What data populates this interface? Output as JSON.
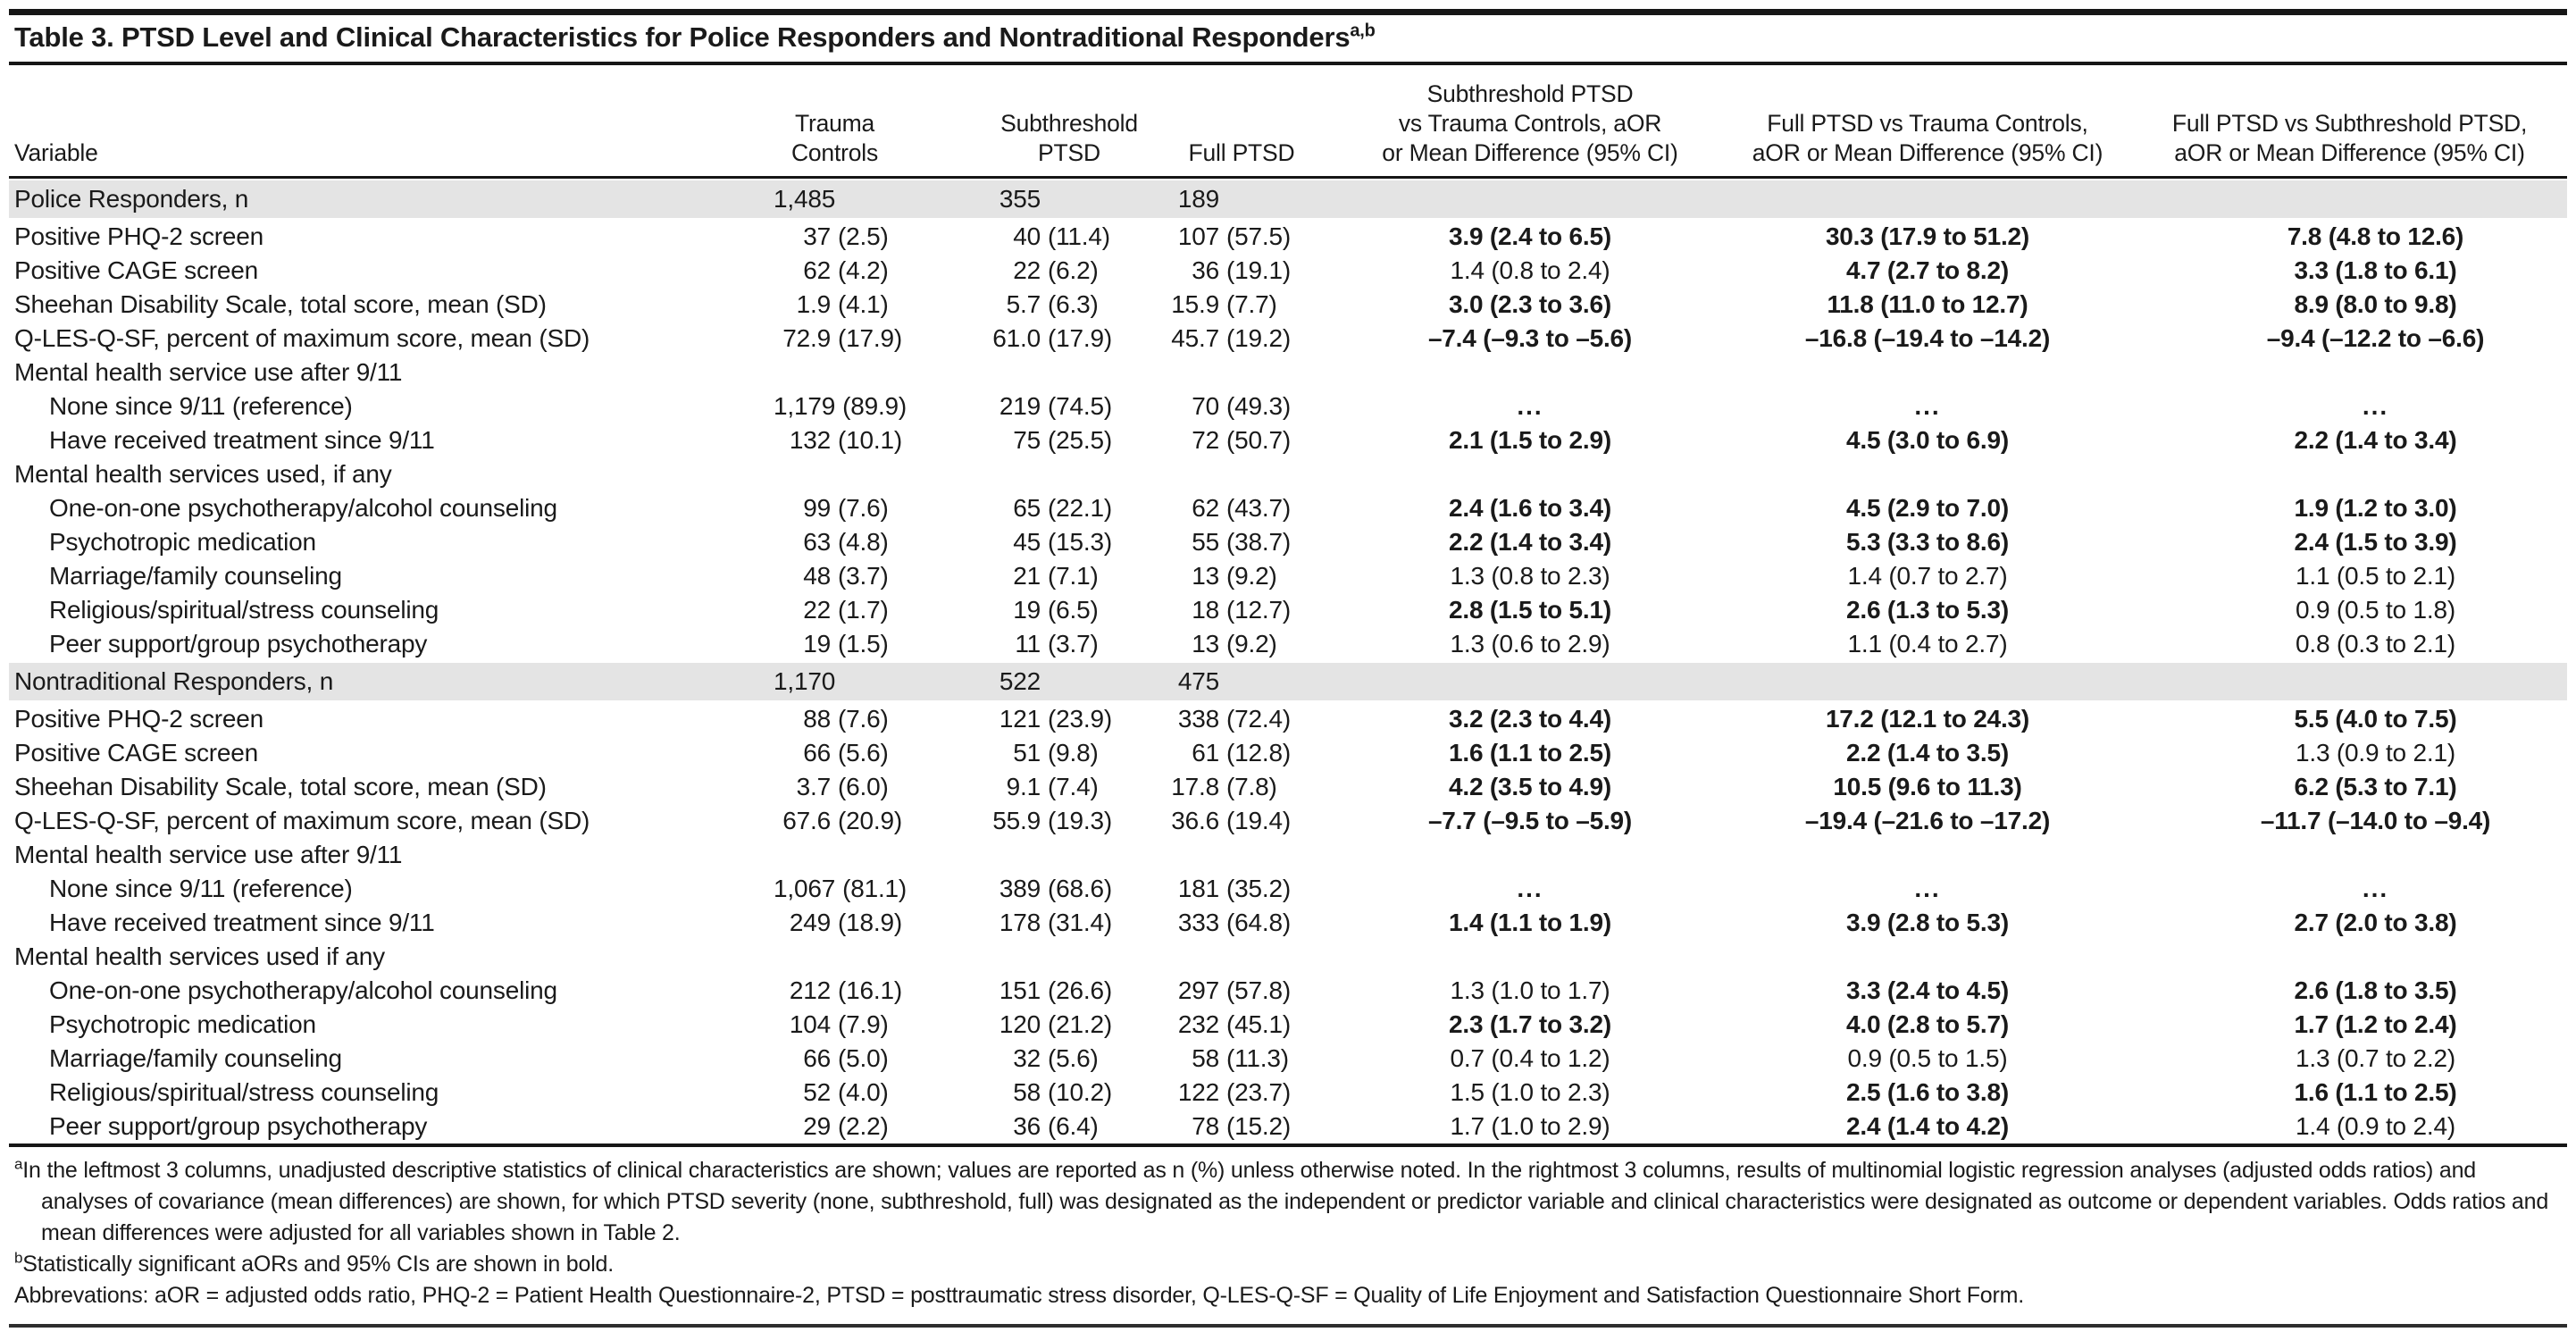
{
  "title": {
    "text": "Table 3. PTSD Level and Clinical Characteristics for Police Responders and Nontraditional Responders",
    "superscript": "a,b"
  },
  "colors": {
    "band_gray": "#e4e4e4",
    "text": "#1a1a1a",
    "rule": "#161616"
  },
  "header": {
    "variable": "Variable",
    "cols": [
      {
        "key": "trauma-controls",
        "lines": [
          "Trauma",
          "Controls"
        ]
      },
      {
        "key": "subthreshold-ptsd",
        "lines": [
          "Subthreshold",
          "PTSD"
        ]
      },
      {
        "key": "full-ptsd",
        "lines": [
          "Full PTSD"
        ]
      },
      {
        "key": "sub-vs-tc",
        "lines": [
          "Subthreshold PTSD",
          "vs Trauma Controls, aOR",
          "or Mean Difference (95% CI)"
        ]
      },
      {
        "key": "full-vs-tc",
        "lines": [
          "Full PTSD vs Trauma Controls,",
          "aOR or Mean Difference (95% CI)"
        ]
      },
      {
        "key": "full-vs-sub",
        "lines": [
          "Full PTSD vs Subthreshold PTSD,",
          "aOR or Mean Difference (95% CI)"
        ]
      }
    ]
  },
  "rows": [
    {
      "type": "band",
      "label": "Police Responders, n",
      "v": [
        "1,485",
        "355",
        "189"
      ]
    },
    {
      "type": "data",
      "label": "Positive PHQ-2 screen",
      "v": [
        "37 (2.5)",
        "40 (11.4)",
        "107 (57.5)"
      ],
      "or": [
        {
          "t": "3.9 (2.4 to 6.5)",
          "b": true
        },
        {
          "t": "30.3 (17.9 to 51.2)",
          "b": true
        },
        {
          "t": "7.8 (4.8 to 12.6)",
          "b": true
        }
      ]
    },
    {
      "type": "data",
      "label": "Positive CAGE screen",
      "v": [
        "62 (4.2)",
        "22 (6.2)",
        "36 (19.1)"
      ],
      "or": [
        {
          "t": "1.4 (0.8 to 2.4)",
          "b": false
        },
        {
          "t": "4.7 (2.7 to 8.2)",
          "b": true
        },
        {
          "t": "3.3 (1.8 to 6.1)",
          "b": true
        }
      ]
    },
    {
      "type": "data",
      "label": "Sheehan Disability Scale, total score, mean (SD)",
      "v": [
        "1.9 (4.1)",
        "5.7 (6.3)",
        "15.9 (7.7)"
      ],
      "or": [
        {
          "t": "3.0 (2.3 to 3.6)",
          "b": true
        },
        {
          "t": "11.8 (11.0 to 12.7)",
          "b": true
        },
        {
          "t": "8.9 (8.0 to 9.8)",
          "b": true
        }
      ]
    },
    {
      "type": "data",
      "label": "Q-LES-Q-SF, percent of maximum score, mean (SD)",
      "v": [
        "72.9 (17.9)",
        "61.0 (17.9)",
        "45.7 (19.2)"
      ],
      "or": [
        {
          "t": "–7.4 (–9.3 to –5.6)",
          "b": true
        },
        {
          "t": "–16.8 (–19.4 to –14.2)",
          "b": true
        },
        {
          "t": "–9.4 (–12.2 to –6.6)",
          "b": true
        }
      ]
    },
    {
      "type": "sub",
      "label": "Mental health service use after 9/11"
    },
    {
      "type": "data",
      "indent": 1,
      "label": "None since 9/11 (reference)",
      "v": [
        "1,179 (89.9)",
        "219 (74.5)",
        "70 (49.3)"
      ],
      "or": [
        {
          "t": "..."
        },
        {
          "t": "..."
        },
        {
          "t": "..."
        }
      ]
    },
    {
      "type": "data",
      "indent": 1,
      "label": "Have received treatment since 9/11",
      "v": [
        "132 (10.1)",
        "75 (25.5)",
        "72 (50.7)"
      ],
      "or": [
        {
          "t": "2.1 (1.5 to 2.9)",
          "b": true
        },
        {
          "t": "4.5 (3.0 to 6.9)",
          "b": true
        },
        {
          "t": "2.2 (1.4 to 3.4)",
          "b": true
        }
      ]
    },
    {
      "type": "sub",
      "label": "Mental health services used, if any"
    },
    {
      "type": "data",
      "indent": 1,
      "label": "One-on-one psychotherapy/alcohol counseling",
      "v": [
        "99 (7.6)",
        "65 (22.1)",
        "62 (43.7)"
      ],
      "or": [
        {
          "t": "2.4 (1.6 to 3.4)",
          "b": true
        },
        {
          "t": "4.5 (2.9 to 7.0)",
          "b": true
        },
        {
          "t": "1.9 (1.2 to 3.0)",
          "b": true
        }
      ]
    },
    {
      "type": "data",
      "indent": 1,
      "label": "Psychotropic medication",
      "v": [
        "63 (4.8)",
        "45 (15.3)",
        "55 (38.7)"
      ],
      "or": [
        {
          "t": "2.2 (1.4 to 3.4)",
          "b": true
        },
        {
          "t": "5.3 (3.3 to 8.6)",
          "b": true
        },
        {
          "t": "2.4 (1.5 to 3.9)",
          "b": true
        }
      ]
    },
    {
      "type": "data",
      "indent": 1,
      "label": "Marriage/family counseling",
      "v": [
        "48 (3.7)",
        "21 (7.1)",
        "13 (9.2)"
      ],
      "or": [
        {
          "t": "1.3 (0.8 to 2.3)",
          "b": false
        },
        {
          "t": "1.4 (0.7 to 2.7)",
          "b": false
        },
        {
          "t": "1.1 (0.5 to 2.1)",
          "b": false
        }
      ]
    },
    {
      "type": "data",
      "indent": 1,
      "label": "Religious/spiritual/stress counseling",
      "v": [
        "22 (1.7)",
        "19 (6.5)",
        "18 (12.7)"
      ],
      "or": [
        {
          "t": "2.8 (1.5 to 5.1)",
          "b": true
        },
        {
          "t": "2.6 (1.3 to 5.3)",
          "b": true
        },
        {
          "t": "0.9 (0.5 to 1.8)",
          "b": false
        }
      ]
    },
    {
      "type": "data",
      "indent": 1,
      "label": "Peer support/group psychotherapy",
      "v": [
        "19 (1.5)",
        "11 (3.7)",
        "13 (9.2)"
      ],
      "or": [
        {
          "t": "1.3 (0.6 to 2.9)",
          "b": false
        },
        {
          "t": "1.1 (0.4 to 2.7)",
          "b": false
        },
        {
          "t": "0.8 (0.3 to 2.1)",
          "b": false
        }
      ]
    },
    {
      "type": "band",
      "label": "Nontraditional Responders, n",
      "v": [
        "1,170",
        "522",
        "475"
      ]
    },
    {
      "type": "data",
      "label": "Positive PHQ-2 screen",
      "v": [
        "88 (7.6)",
        "121 (23.9)",
        "338 (72.4)"
      ],
      "or": [
        {
          "t": "3.2 (2.3 to 4.4)",
          "b": true
        },
        {
          "t": "17.2 (12.1 to 24.3)",
          "b": true
        },
        {
          "t": "5.5 (4.0 to 7.5)",
          "b": true
        }
      ]
    },
    {
      "type": "data",
      "label": "Positive CAGE screen",
      "v": [
        "66 (5.6)",
        "51 (9.8)",
        "61 (12.8)"
      ],
      "or": [
        {
          "t": "1.6 (1.1 to 2.5)",
          "b": true
        },
        {
          "t": "2.2 (1.4 to 3.5)",
          "b": true
        },
        {
          "t": "1.3 (0.9 to 2.1)",
          "b": false
        }
      ]
    },
    {
      "type": "data",
      "label": "Sheehan Disability Scale, total score, mean (SD)",
      "v": [
        "3.7 (6.0)",
        "9.1 (7.4)",
        "17.8 (7.8)"
      ],
      "or": [
        {
          "t": "4.2 (3.5 to 4.9)",
          "b": true
        },
        {
          "t": "10.5 (9.6 to 11.3)",
          "b": true
        },
        {
          "t": "6.2 (5.3 to 7.1)",
          "b": true
        }
      ]
    },
    {
      "type": "data",
      "label": "Q-LES-Q-SF, percent of maximum score, mean (SD)",
      "v": [
        "67.6 (20.9)",
        "55.9 (19.3)",
        "36.6 (19.4)"
      ],
      "or": [
        {
          "t": "–7.7 (–9.5 to –5.9)",
          "b": true
        },
        {
          "t": "–19.4 (–21.6 to –17.2)",
          "b": true
        },
        {
          "t": "–11.7 (–14.0 to –9.4)",
          "b": true
        }
      ]
    },
    {
      "type": "sub",
      "label": "Mental health service use after 9/11"
    },
    {
      "type": "data",
      "indent": 1,
      "label": "None since 9/11 (reference)",
      "v": [
        "1,067 (81.1)",
        "389 (68.6)",
        "181 (35.2)"
      ],
      "or": [
        {
          "t": "..."
        },
        {
          "t": "..."
        },
        {
          "t": "..."
        }
      ]
    },
    {
      "type": "data",
      "indent": 1,
      "label": "Have received treatment since 9/11",
      "v": [
        "249 (18.9)",
        "178 (31.4)",
        "333 (64.8)"
      ],
      "or": [
        {
          "t": "1.4 (1.1 to 1.9)",
          "b": true
        },
        {
          "t": "3.9 (2.8 to 5.3)",
          "b": true
        },
        {
          "t": "2.7 (2.0 to 3.8)",
          "b": true
        }
      ]
    },
    {
      "type": "sub",
      "label": "Mental health services used if any"
    },
    {
      "type": "data",
      "indent": 1,
      "label": "One-on-one psychotherapy/alcohol counseling",
      "v": [
        "212 (16.1)",
        "151 (26.6)",
        "297 (57.8)"
      ],
      "or": [
        {
          "t": "1.3 (1.0 to 1.7)",
          "b": false
        },
        {
          "t": "3.3 (2.4 to 4.5)",
          "b": true
        },
        {
          "t": "2.6 (1.8 to 3.5)",
          "b": true
        }
      ]
    },
    {
      "type": "data",
      "indent": 1,
      "label": "Psychotropic medication",
      "v": [
        "104 (7.9)",
        "120 (21.2)",
        "232 (45.1)"
      ],
      "or": [
        {
          "t": "2.3 (1.7 to 3.2)",
          "b": true
        },
        {
          "t": "4.0 (2.8 to 5.7)",
          "b": true
        },
        {
          "t": "1.7 (1.2 to 2.4)",
          "b": true
        }
      ]
    },
    {
      "type": "data",
      "indent": 1,
      "label": "Marriage/family counseling",
      "v": [
        "66 (5.0)",
        "32 (5.6)",
        "58 (11.3)"
      ],
      "or": [
        {
          "t": "0.7 (0.4 to 1.2)",
          "b": false
        },
        {
          "t": "0.9 (0.5 to 1.5)",
          "b": false
        },
        {
          "t": "1.3 (0.7 to 2.2)",
          "b": false
        }
      ]
    },
    {
      "type": "data",
      "indent": 1,
      "label": "Religious/spiritual/stress counseling",
      "v": [
        "52 (4.0)",
        "58 (10.2)",
        "122 (23.7)"
      ],
      "or": [
        {
          "t": "1.5 (1.0 to 2.3)",
          "b": false
        },
        {
          "t": "2.5 (1.6 to 3.8)",
          "b": true
        },
        {
          "t": "1.6 (1.1 to 2.5)",
          "b": true
        }
      ]
    },
    {
      "type": "data",
      "indent": 1,
      "label": "Peer support/group psychotherapy",
      "v": [
        "29 (2.2)",
        "36 (6.4)",
        "78 (15.2)"
      ],
      "or": [
        {
          "t": "1.7 (1.0 to 2.9)",
          "b": false
        },
        {
          "t": "2.4 (1.4 to 4.2)",
          "b": true
        },
        {
          "t": "1.4 (0.9 to 2.4)",
          "b": false
        }
      ]
    }
  ],
  "footnotes": {
    "a_sup": "a",
    "a": "In the leftmost 3 columns, unadjusted descriptive statistics of clinical characteristics are shown; values are reported as n (%) unless otherwise noted. In the rightmost 3 columns, results of multinomial logistic regression analyses (adjusted odds ratios) and analyses of covariance (mean differences) are shown, for which PTSD severity (none, subthreshold, full) was designated as the independent or predictor variable and clinical characteristics were designated as outcome or dependent variables. Odds ratios and mean differences were adjusted for all variables shown in Table 2.",
    "b_sup": "b",
    "b": "Statistically significant aORs and 95% CIs are shown in bold.",
    "abbreviations": "Abbrevations: aOR = adjusted odds ratio, PHQ-2 = Patient Health Questionnaire-2, PTSD = posttraumatic stress disorder, Q-LES-Q-SF = Quality of Life Enjoyment and Satisfaction Questionnaire Short Form."
  }
}
